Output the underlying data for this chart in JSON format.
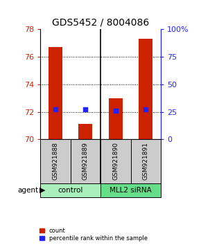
{
  "title": "GDS5452 / 8004086",
  "samples": [
    "GSM921888",
    "GSM921889",
    "GSM921890",
    "GSM921891"
  ],
  "count_values": [
    76.7,
    71.1,
    73.0,
    77.3
  ],
  "percentile_values": [
    27.0,
    27.0,
    26.0,
    27.0
  ],
  "ylim_left": [
    70,
    78
  ],
  "ylim_right": [
    0,
    100
  ],
  "yticks_left": [
    70,
    72,
    74,
    76,
    78
  ],
  "yticks_left_labels": [
    "70",
    "72",
    "74",
    "76",
    "78"
  ],
  "yticks_right": [
    0,
    25,
    50,
    75,
    100
  ],
  "yticks_right_labels": [
    "0",
    "25",
    "50",
    "75",
    "100%"
  ],
  "bar_color": "#cc2200",
  "dot_color": "#2222ff",
  "bar_width": 0.45,
  "groups": [
    {
      "label": "control",
      "samples": [
        0,
        1
      ],
      "color": "#aaeebb"
    },
    {
      "label": "MLL2 siRNA",
      "samples": [
        2,
        3
      ],
      "color": "#66dd88"
    }
  ],
  "agent_label": "agent",
  "legend_count_label": "count",
  "legend_pct_label": "percentile rank within the sample",
  "title_fontsize": 10,
  "tick_fontsize": 8,
  "sample_bg_color": "#cccccc",
  "base_value": 70.0
}
